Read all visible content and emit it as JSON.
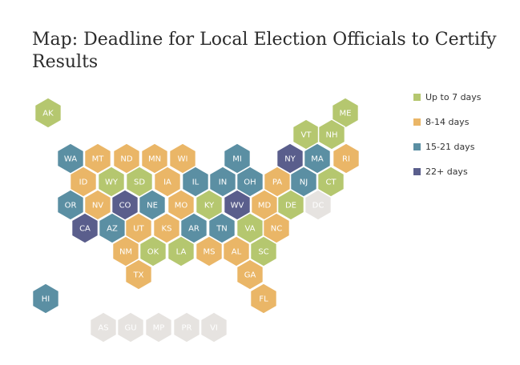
{
  "title": "Map: Deadline for Local Election Officials to Certify Results",
  "legend": [
    {
      "key": "up7",
      "label": "Up to 7 days",
      "color": "#b5c76f"
    },
    {
      "key": "8to14",
      "label": "8-14 days",
      "color": "#eab667"
    },
    {
      "key": "15to21",
      "label": "15-21 days",
      "color": "#5b8fa3"
    },
    {
      "key": "22plus",
      "label": "22+ days",
      "color": "#5a5e8c"
    }
  ],
  "no_data_color": "#e6e3e0",
  "states": [
    {
      "code": "AK",
      "category": "up7"
    },
    {
      "code": "ME",
      "category": "up7"
    },
    {
      "code": "VT",
      "category": "up7"
    },
    {
      "code": "NH",
      "category": "up7"
    },
    {
      "code": "WA",
      "category": "15to21"
    },
    {
      "code": "MT",
      "category": "8to14"
    },
    {
      "code": "ND",
      "category": "8to14"
    },
    {
      "code": "MN",
      "category": "8to14"
    },
    {
      "code": "WI",
      "category": "8to14"
    },
    {
      "code": "MI",
      "category": "15to21"
    },
    {
      "code": "NY",
      "category": "22plus"
    },
    {
      "code": "MA",
      "category": "15to21"
    },
    {
      "code": "RI",
      "category": "8to14"
    },
    {
      "code": "ID",
      "category": "8to14"
    },
    {
      "code": "WY",
      "category": "up7"
    },
    {
      "code": "SD",
      "category": "up7"
    },
    {
      "code": "IA",
      "category": "8to14"
    },
    {
      "code": "IL",
      "category": "15to21"
    },
    {
      "code": "IN",
      "category": "15to21"
    },
    {
      "code": "OH",
      "category": "15to21"
    },
    {
      "code": "PA",
      "category": "8to14"
    },
    {
      "code": "NJ",
      "category": "15to21"
    },
    {
      "code": "CT",
      "category": "up7"
    },
    {
      "code": "OR",
      "category": "15to21"
    },
    {
      "code": "NV",
      "category": "8to14"
    },
    {
      "code": "CO",
      "category": "22plus"
    },
    {
      "code": "NE",
      "category": "15to21"
    },
    {
      "code": "MO",
      "category": "8to14"
    },
    {
      "code": "KY",
      "category": "up7"
    },
    {
      "code": "WV",
      "category": "22plus"
    },
    {
      "code": "MD",
      "category": "8to14"
    },
    {
      "code": "DE",
      "category": "up7"
    },
    {
      "code": "DC",
      "category": "none"
    },
    {
      "code": "CA",
      "category": "22plus"
    },
    {
      "code": "AZ",
      "category": "15to21"
    },
    {
      "code": "UT",
      "category": "8to14"
    },
    {
      "code": "KS",
      "category": "8to14"
    },
    {
      "code": "AR",
      "category": "15to21"
    },
    {
      "code": "TN",
      "category": "15to21"
    },
    {
      "code": "VA",
      "category": "up7"
    },
    {
      "code": "NC",
      "category": "8to14"
    },
    {
      "code": "NM",
      "category": "8to14"
    },
    {
      "code": "OK",
      "category": "up7"
    },
    {
      "code": "LA",
      "category": "up7"
    },
    {
      "code": "MS",
      "category": "8to14"
    },
    {
      "code": "AL",
      "category": "8to14"
    },
    {
      "code": "SC",
      "category": "up7"
    },
    {
      "code": "TX",
      "category": "8to14"
    },
    {
      "code": "GA",
      "category": "8to14"
    },
    {
      "code": "FL",
      "category": "8to14"
    },
    {
      "code": "HI",
      "category": "15to21"
    },
    {
      "code": "AS",
      "category": "none"
    },
    {
      "code": "GU",
      "category": "none"
    },
    {
      "code": "MP",
      "category": "none"
    },
    {
      "code": "PR",
      "category": "none"
    },
    {
      "code": "VI",
      "category": "none"
    }
  ]
}
